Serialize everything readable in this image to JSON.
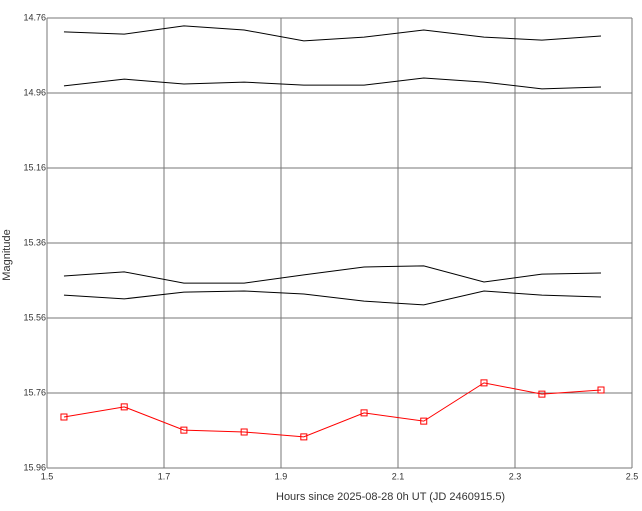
{
  "chart_data": {
    "type": "line",
    "xlabel": "Hours since 2025-08-28 0h UT (JD 2460915.5)",
    "ylabel": "Magnitude",
    "x": [
      1.529,
      1.632,
      1.734,
      1.837,
      1.939,
      2.042,
      2.144,
      2.247,
      2.346,
      2.447
    ],
    "series": [
      {
        "color": "#000000",
        "values": [
          14.797,
          14.803,
          14.781,
          14.792,
          14.821,
          14.811,
          14.792,
          14.811,
          14.819,
          14.808
        ]
      },
      {
        "color": "#000000",
        "values": [
          14.941,
          14.923,
          14.936,
          14.931,
          14.939,
          14.939,
          14.92,
          14.931,
          14.949,
          14.944
        ]
      },
      {
        "color": "#000000",
        "values": [
          15.448,
          15.437,
          15.467,
          15.467,
          15.445,
          15.424,
          15.421,
          15.464,
          15.443,
          15.44
        ]
      },
      {
        "color": "#000000",
        "values": [
          15.499,
          15.509,
          15.491,
          15.488,
          15.496,
          15.515,
          15.525,
          15.488,
          15.499,
          15.504
        ]
      },
      {
        "color": "#ff0000",
        "marker": "square",
        "values": [
          15.824,
          15.797,
          15.859,
          15.864,
          15.877,
          15.813,
          15.835,
          15.733,
          15.763,
          15.752
        ]
      }
    ],
    "xlim": [
      1.5,
      2.5
    ],
    "xticks": [
      1.5,
      1.7,
      1.9,
      2.1,
      2.3,
      2.5
    ],
    "ylim": [
      14.76,
      15.96
    ],
    "y_inverted": true,
    "yticks": [
      14.76,
      14.96,
      15.16,
      15.36,
      15.56,
      15.76,
      15.96
    ],
    "grid": true
  }
}
